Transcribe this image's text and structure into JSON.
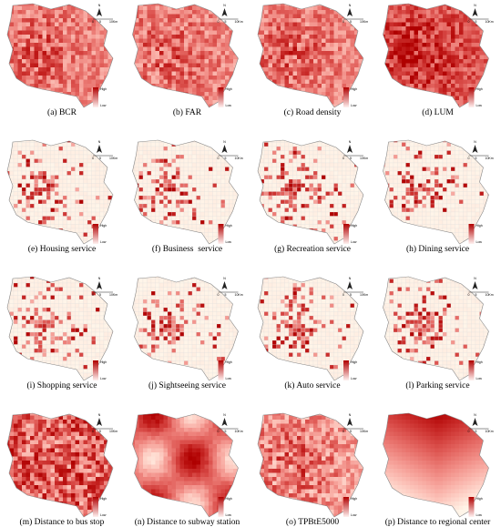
{
  "panels": [
    {
      "caption": "(a) BCR"
    },
    {
      "caption": "(b) FAR"
    },
    {
      "caption": "(c) Road density"
    },
    {
      "caption": "(d) LUM"
    },
    {
      "caption": "(e) Housing service"
    },
    {
      "caption": "(f) Business  service"
    },
    {
      "caption": "(g) Recreation service"
    },
    {
      "caption": "(h) Dining service"
    },
    {
      "caption": "(i) Shopping service"
    },
    {
      "caption": "(j) Sightseeing service"
    },
    {
      "caption": "(k) Auto service"
    },
    {
      "caption": "(l) Parking service"
    },
    {
      "caption": "(m) Distance to bus stop"
    },
    {
      "caption": "(n) Distance to subway station"
    },
    {
      "caption": "(o) TPBtE5000"
    },
    {
      "caption": "(p) Distance to regional center"
    }
  ],
  "north": "N",
  "scale": {
    "start": "0",
    "mid": "5",
    "end": "10Km"
  },
  "legend": {
    "high": "High",
    "low": "Low"
  }
}
